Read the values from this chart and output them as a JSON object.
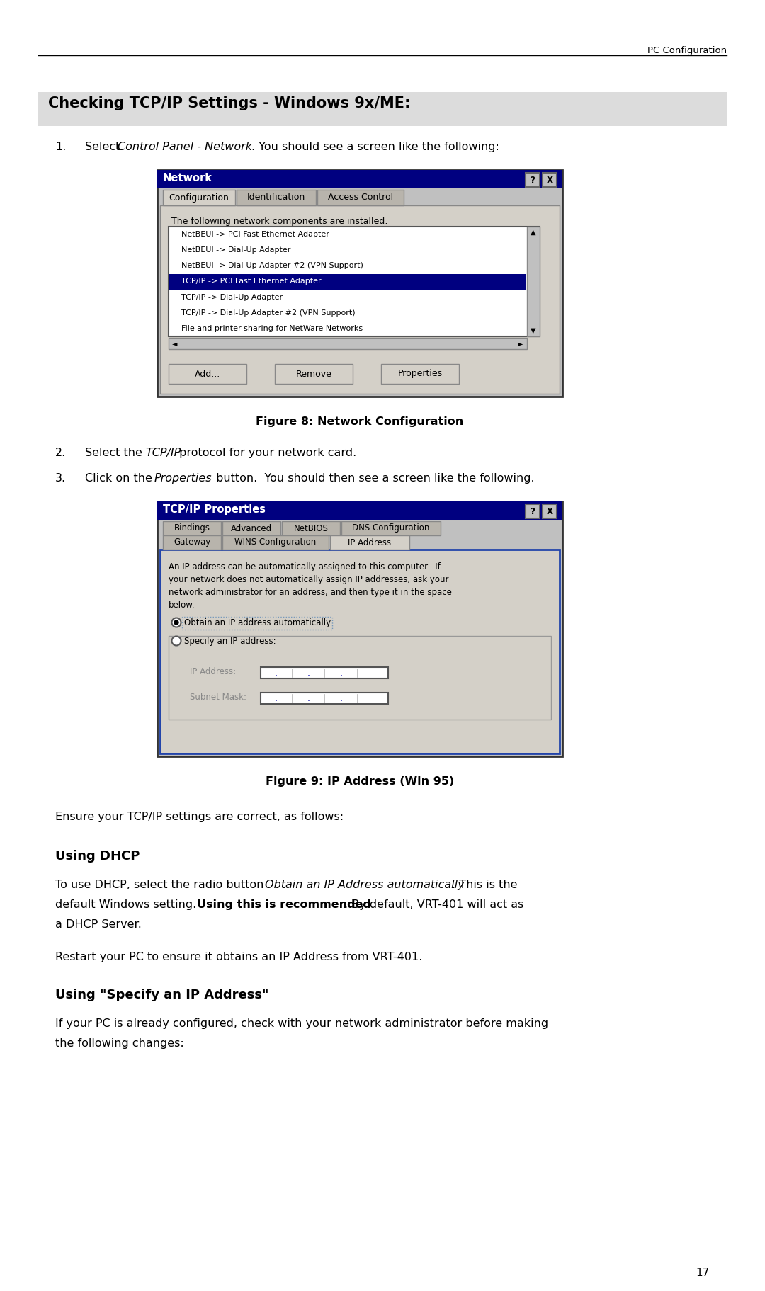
{
  "page_header_right": "PC Configuration",
  "page_number": "17",
  "section_title": "Checking TCP/IP Settings - Windows 9x/ME:",
  "fig8_caption": "Figure 8: Network Configuration",
  "fig9_caption": "Figure 9: IP Address (Win 95)",
  "ensure_text": "Ensure your TCP/IP settings are correct, as follows:",
  "dhcp_heading": "Using DHCP",
  "dhcp_para2": "Restart your PC to ensure it obtains an IP Address from VRT-401.",
  "specify_heading": "Using \"Specify an IP Address\"",
  "specify_para_1": "If your PC is already configured, check with your network administrator before making",
  "specify_para_2": "the following changes:",
  "win_title_bg": "#000080",
  "win_title_text": "#ffffff",
  "win_selected_bg": "#000080",
  "win_selected_text": "#ffffff",
  "win_body_bg": "#c0c0c0",
  "win_list_bg": "#ffffff",
  "network_items": [
    "NetBEUI -> PCI Fast Ethernet Adapter",
    "NetBEUI -> Dial-Up Adapter",
    "NetBEUI -> Dial-Up Adapter #2 (VPN Support)",
    "TCP/IP -> PCI Fast Ethernet Adapter",
    "TCP/IP -> Dial-Up Adapter",
    "TCP/IP -> Dial-Up Adapter #2 (VPN Support)",
    "File and printer sharing for NetWare Networks"
  ],
  "network_selected_idx": 3,
  "network_tabs": [
    "Configuration",
    "Identification",
    "Access Control"
  ],
  "tcpip_tabs_row1": [
    "Bindings",
    "Advanced",
    "NetBIOS",
    "DNS Configuration"
  ],
  "tcpip_tabs_row2": [
    "Gateway",
    "WINS Configuration",
    "IP Address"
  ],
  "tcpip_active_tab": "IP Address",
  "ip_desc_lines": [
    "An IP address can be automatically assigned to this computer.  If",
    "your network does not automatically assign IP addresses, ask your",
    "network administrator for an address, and then type it in the space",
    "below."
  ],
  "radio1_label": "Obtain an IP address automatically",
  "radio2_label": "Specify an IP address:",
  "ip_label": "IP Address:",
  "subnet_label": "Subnet Mask:"
}
